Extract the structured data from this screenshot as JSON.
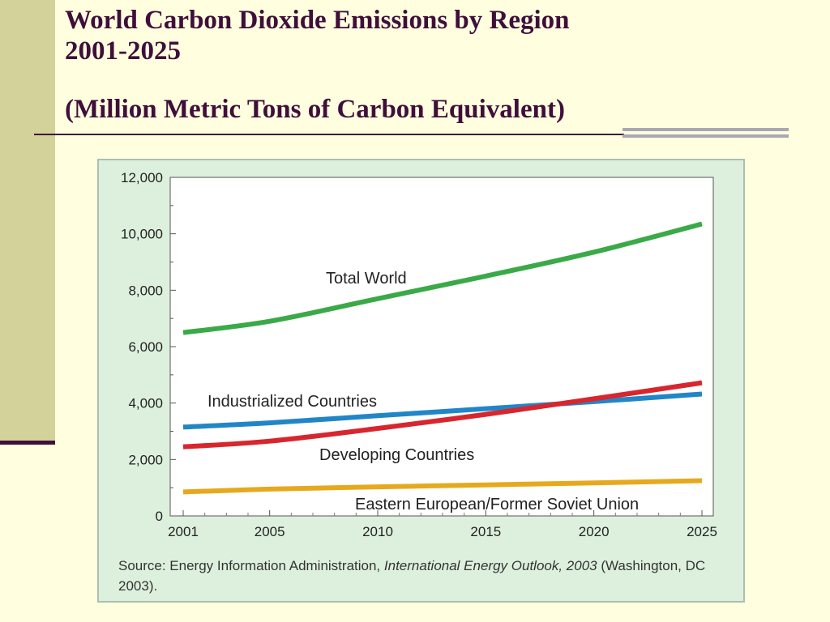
{
  "slide": {
    "title_lines": [
      "World Carbon Dioxide Emissions by Region",
      "2001-2025"
    ],
    "subtitle": "(Million Metric Tons of Carbon Equivalent)"
  },
  "source": {
    "prefix": "Source: Energy Information Administration, ",
    "publication": "International Energy Outlook, 2003",
    "suffix": " (Washington, DC 2003)."
  },
  "chart_data": {
    "type": "line",
    "x": [
      2001,
      2005,
      2010,
      2015,
      2020,
      2025
    ],
    "x_tick_labels": [
      "2001",
      "2005",
      "2010",
      "2015",
      "2020",
      "2025"
    ],
    "xlim": [
      2001,
      2025
    ],
    "ylim": [
      0,
      12000
    ],
    "y_ticks": [
      0,
      2000,
      4000,
      6000,
      8000,
      10000,
      12000
    ],
    "y_tick_labels": [
      "0",
      "2,000",
      "4,000",
      "6,000",
      "8,000",
      "10,000",
      "12,000"
    ],
    "grid": false,
    "series": [
      {
        "name": "Total World",
        "color": "#3aaa48",
        "values": [
          6500,
          6900,
          7700,
          8500,
          9350,
          10350
        ]
      },
      {
        "name": "Industrialized Countries",
        "color": "#2186c8",
        "values": [
          3150,
          3300,
          3550,
          3800,
          4050,
          4320
        ]
      },
      {
        "name": "Developing Countries",
        "color": "#d8262e",
        "values": [
          2450,
          2650,
          3100,
          3600,
          4150,
          4720
        ]
      },
      {
        "name": "Eastern European/Former Soviet Union",
        "color": "#e6a91e",
        "values": [
          850,
          950,
          1030,
          1100,
          1170,
          1250
        ]
      }
    ]
  }
}
